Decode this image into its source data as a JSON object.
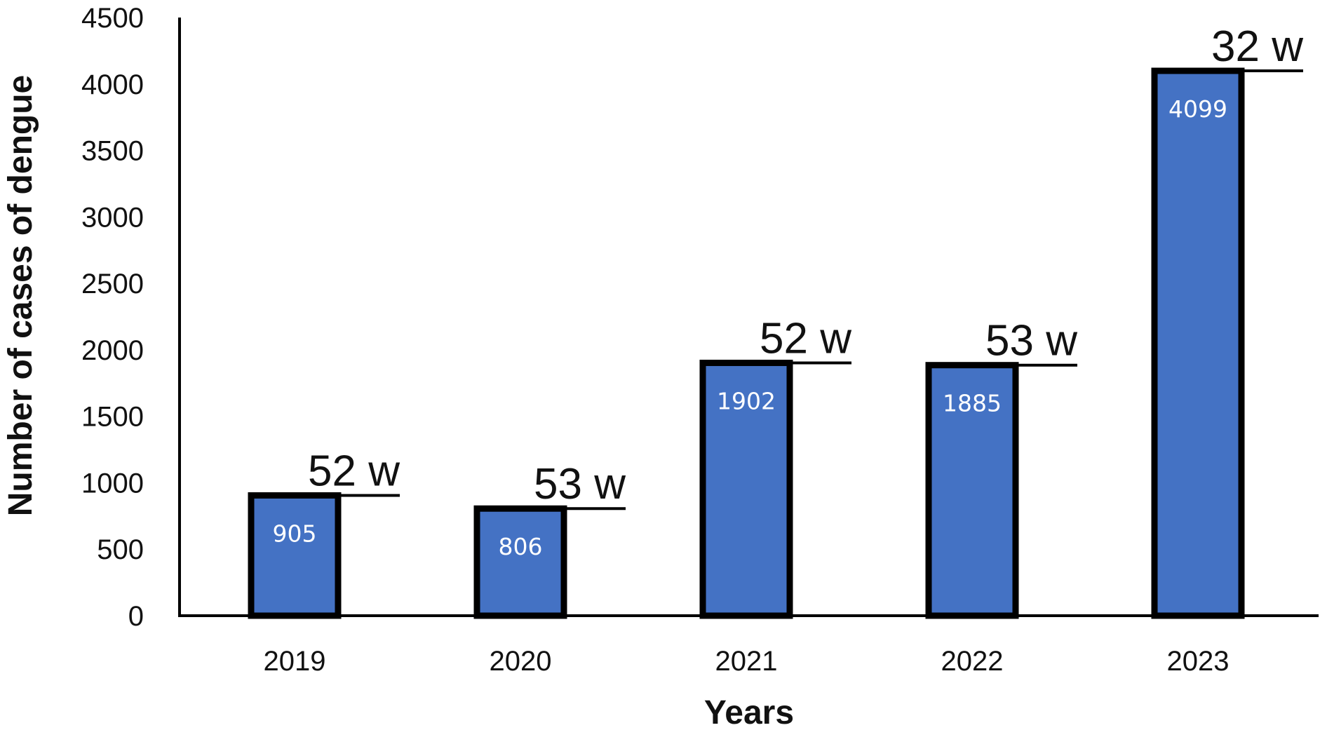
{
  "chart_data": {
    "type": "bar",
    "title": "",
    "xlabel": "Years",
    "ylabel": "Number of cases of dengue",
    "categories": [
      "2019",
      "2020",
      "2021",
      "2022",
      "2023"
    ],
    "values": [
      905,
      806,
      1902,
      1885,
      4099
    ],
    "data_labels": [
      "905",
      "806",
      "1902",
      "1885",
      "4099"
    ],
    "annotations": [
      "52 w",
      "53 w",
      "52 w",
      "53 w",
      "32 w"
    ],
    "y_ticks": [
      "0",
      "500",
      "1000",
      "1500",
      "2000",
      "2500",
      "3000",
      "3500",
      "4000",
      "4500"
    ],
    "ylim": [
      0,
      4500
    ],
    "grid": false,
    "legend": "none",
    "colors": {
      "bar_fill": "#4472C4",
      "bar_outline": "#000000",
      "axis": "#000000"
    }
  }
}
